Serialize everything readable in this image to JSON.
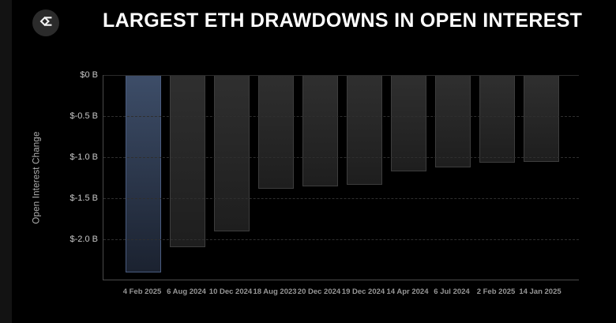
{
  "header": {
    "title": "LARGEST ETH DRAWDOWNS IN OPEN INTEREST",
    "logo_icon": "sigma-diamond"
  },
  "chart_data": {
    "type": "bar",
    "title": "LARGEST ETH DRAWDOWNS IN OPEN INTEREST",
    "xlabel": "",
    "ylabel": "Open Interest Change",
    "unit": "billion USD",
    "ylim": [
      -2.5,
      0
    ],
    "grid": true,
    "legend": false,
    "yticks": [
      {
        "value": 0,
        "label": "$0 B"
      },
      {
        "value": -0.5,
        "label": "$-0.5 B"
      },
      {
        "value": -1.0,
        "label": "$-1.0 B"
      },
      {
        "value": -1.5,
        "label": "$-1.5 B"
      },
      {
        "value": -2.0,
        "label": "$-2.0 B"
      }
    ],
    "categories": [
      "4 Feb 2025",
      "6 Aug 2024",
      "10 Dec 2024",
      "18 Aug 2023",
      "20 Dec 2024",
      "19 Dec 2024",
      "14 Apr 2024",
      "6 Jul 2024",
      "2 Feb 2025",
      "14 Jan 2025"
    ],
    "values": [
      -2.4,
      -2.1,
      -1.9,
      -1.38,
      -1.36,
      -1.34,
      -1.17,
      -1.12,
      -1.07,
      -1.06
    ],
    "highlight_index": 0,
    "colors": {
      "background": "#000000",
      "bar_default_top": "#2f2f2f",
      "bar_default_bottom": "#1e1e1e",
      "bar_default_border": "#3d3d3d",
      "bar_highlight_top": "#3d4d68",
      "bar_highlight_bottom": "#1b2230",
      "bar_highlight_border": "#4a5c80",
      "axis_line": "#4a4a4a",
      "gridline": "#2f2f2f",
      "tick_label": "#c8c8c8",
      "x_label": "#969696",
      "axis_title": "#b0b0b0"
    }
  }
}
